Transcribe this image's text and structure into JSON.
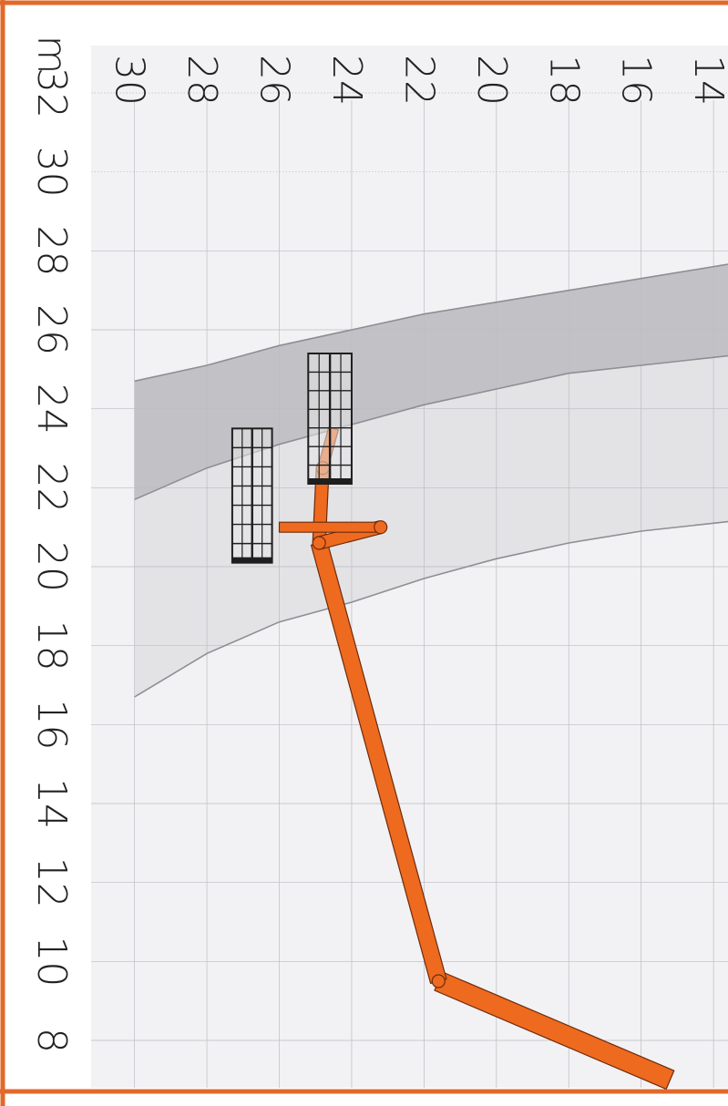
{
  "colors": {
    "frame": "#e2692a",
    "plot_background": "#f2f2f4",
    "envelope_outer": "#e3e3e6",
    "envelope_inner": "#bcbcc0",
    "envelope_line": "#8e8e93",
    "grid": "#bdbdc2",
    "boom": "#ee6a1f",
    "boom_outline": "#6e2a0c",
    "basket": "#e6e6e8",
    "basket_outline": "#1e1e1e",
    "label": "#222222"
  },
  "chart_data": {
    "type": "area",
    "orientation": "rotated 90 degrees clockwise: height axis runs across the top, outreach axis runs down the left side",
    "title": "",
    "height_axis": {
      "label": "m",
      "ticks": [
        "30",
        "28",
        "26",
        "24",
        "22",
        "20",
        "18",
        "16",
        "14"
      ],
      "tick_values": [
        30,
        28,
        26,
        24,
        22,
        20,
        18,
        16,
        14
      ]
    },
    "outreach_axis": {
      "label": "",
      "ticks": [
        "32",
        "30",
        "28",
        "26",
        "24",
        "22",
        "20",
        "18",
        "16",
        "14",
        "12",
        "10",
        "8"
      ],
      "tick_values": [
        32,
        30,
        28,
        26,
        24,
        22,
        20,
        18,
        16,
        14,
        12,
        10,
        8
      ]
    },
    "height_range": [
      31.2,
      13.6
    ],
    "outreach_range": [
      33.2,
      6.8
    ],
    "grid": true,
    "series": [
      {
        "role": "outer-envelope-boundary",
        "points": [
          [
            30.0,
            16.7
          ],
          [
            28.0,
            17.8
          ],
          [
            26.0,
            18.6
          ],
          [
            24.0,
            19.1
          ],
          [
            22.0,
            19.7
          ],
          [
            20.0,
            20.2
          ],
          [
            18.0,
            20.6
          ],
          [
            16.0,
            20.9
          ],
          [
            14.0,
            21.1
          ]
        ]
      },
      {
        "role": "inner-envelope-lower-boundary",
        "points": [
          [
            30.0,
            21.7
          ],
          [
            28.0,
            22.5
          ],
          [
            26.0,
            23.1
          ],
          [
            24.0,
            23.6
          ],
          [
            22.0,
            24.1
          ],
          [
            20.0,
            24.5
          ],
          [
            18.0,
            24.9
          ],
          [
            16.0,
            25.1
          ],
          [
            14.0,
            25.3
          ]
        ]
      },
      {
        "role": "inner-envelope-upper-boundary",
        "points": [
          [
            30.0,
            24.7
          ],
          [
            28.0,
            25.1
          ],
          [
            26.0,
            25.6
          ],
          [
            24.0,
            26.0
          ],
          [
            22.0,
            26.4
          ],
          [
            20.0,
            26.7
          ],
          [
            18.0,
            27.0
          ],
          [
            16.0,
            27.3
          ],
          [
            14.0,
            27.6
          ]
        ]
      }
    ],
    "boom": {
      "base": [
        15.2,
        7.0
      ],
      "elbow": [
        21.6,
        9.5
      ],
      "mast_top": [
        24.9,
        20.6
      ],
      "knuckle_a": [
        24.8,
        22.5
      ],
      "basket_a_attach": [
        24.5,
        23.5
      ],
      "knuckle_b": [
        23.2,
        21.0
      ],
      "basket_b_attach": [
        26.0,
        21.0
      ]
    },
    "baskets": [
      {
        "height_span": [
          25.2,
          24.0
        ],
        "outreach_span": [
          22.1,
          25.4
        ]
      },
      {
        "height_span": [
          27.3,
          26.2
        ],
        "outreach_span": [
          20.1,
          23.5
        ]
      }
    ]
  }
}
